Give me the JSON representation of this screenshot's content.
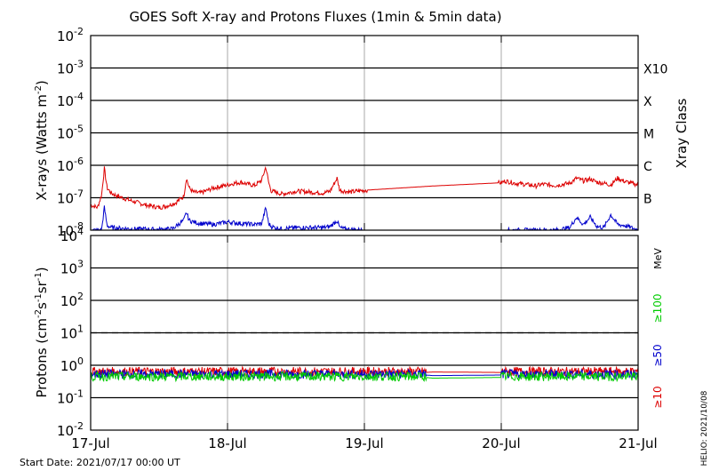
{
  "chart_data": [
    {
      "type": "line",
      "title": "GOES Soft X-ray and Protons Fluxes   (1min & 5min data)",
      "ylabel_base": "X-rays (Watts m",
      "ylabel_sup": "-2",
      "ylabel_close": ")",
      "y_scale": "log",
      "ylim": [
        1e-08,
        0.01
      ],
      "y_ticks": [
        {
          "base": "10",
          "exp": "-2",
          "value": 0.01
        },
        {
          "base": "10",
          "exp": "-3",
          "value": 0.001
        },
        {
          "base": "10",
          "exp": "-4",
          "value": 0.0001
        },
        {
          "base": "10",
          "exp": "-5",
          "value": 1e-05
        },
        {
          "base": "10",
          "exp": "-6",
          "value": 1e-06
        },
        {
          "base": "10",
          "exp": "-7",
          "value": 1e-07
        },
        {
          "base": "10",
          "exp": "-8",
          "value": 1e-08
        }
      ],
      "right_axis_label": "Xray Class",
      "right_ticks": [
        {
          "label": "X10",
          "value": 0.001
        },
        {
          "label": "X",
          "value": 0.0001
        },
        {
          "label": "M",
          "value": 1e-05
        },
        {
          "label": "C",
          "value": 1e-06
        },
        {
          "label": "B",
          "value": 1e-07
        }
      ],
      "series": [
        {
          "color": "#dd0000",
          "x": [
            0.0,
            0.05,
            0.08,
            0.1,
            0.12,
            0.15,
            0.2,
            0.3,
            0.4,
            0.5,
            0.55,
            0.62,
            0.68,
            0.7,
            0.72,
            0.75,
            0.8,
            0.9,
            1.0,
            1.05,
            1.1,
            1.15,
            1.2,
            1.25,
            1.28,
            1.3,
            1.32,
            1.35,
            1.4,
            1.5,
            1.6,
            1.7,
            1.75,
            1.8,
            1.82,
            1.85,
            1.9,
            1.95,
            2.0,
            2.5,
            3.0,
            3.03,
            3.1,
            3.2,
            3.25,
            3.3,
            3.4,
            3.5,
            3.55,
            3.6,
            3.65,
            3.7,
            3.75,
            3.8,
            3.85,
            3.9,
            3.95,
            4.0
          ],
          "y": [
            6e-08,
            5e-08,
            1.2e-07,
            8e-07,
            2e-07,
            1.4e-07,
            1.1e-07,
            8e-08,
            6e-08,
            5e-08,
            5.5e-08,
            7e-08,
            1.1e-07,
            4e-07,
            2e-07,
            1.5e-07,
            1.4e-07,
            2e-07,
            2.5e-07,
            2.8e-07,
            3e-07,
            2.6e-07,
            2.4e-07,
            3.5e-07,
            9e-07,
            3e-07,
            1.6e-07,
            1.5e-07,
            1.3e-07,
            1.6e-07,
            1.5e-07,
            1.4e-07,
            1.6e-07,
            4e-07,
            1.7e-07,
            1.6e-07,
            1.5e-07,
            1.6e-07,
            1.7e-07,
            2.3e-07,
            2.9e-07,
            3.3e-07,
            2.8e-07,
            2.5e-07,
            2.3e-07,
            2.6e-07,
            2.4e-07,
            2.8e-07,
            4e-07,
            3.3e-07,
            3.8e-07,
            3e-07,
            2.8e-07,
            2.5e-07,
            4e-07,
            3.2e-07,
            2.8e-07,
            2.5e-07
          ]
        },
        {
          "color": "#0000cc",
          "x": [
            0.0,
            0.05,
            0.08,
            0.1,
            0.12,
            0.15,
            0.3,
            0.5,
            0.6,
            0.62,
            0.68,
            0.7,
            0.72,
            0.75,
            0.8,
            0.9,
            1.0,
            1.1,
            1.2,
            1.25,
            1.28,
            1.3,
            1.32,
            1.35,
            1.4,
            1.5,
            1.6,
            1.7,
            1.75,
            1.8,
            1.82,
            1.85,
            1.9,
            1.95,
            2.0
          ],
          "y": [
            1e-08,
            1e-08,
            1e-08,
            5e-08,
            1.4e-08,
            1.2e-08,
            1.1e-08,
            1.05e-08,
            1.1e-08,
            1.3e-08,
            2e-08,
            3.5e-08,
            2e-08,
            1.8e-08,
            1.6e-08,
            1.5e-08,
            1.8e-08,
            1.6e-08,
            1.5e-08,
            1.6e-08,
            5e-08,
            1.6e-08,
            1.3e-08,
            1.2e-08,
            1.1e-08,
            1.2e-08,
            1.2e-08,
            1.2e-08,
            1.3e-08,
            2e-08,
            1.2e-08,
            1.1e-08,
            1.05e-08,
            1.02e-08,
            1e-08
          ]
        },
        {
          "color": "#0000cc",
          "x": [
            3.05,
            3.1,
            3.2,
            3.3,
            3.4,
            3.5,
            3.55,
            3.6,
            3.65,
            3.7,
            3.75,
            3.8,
            3.85,
            3.9,
            3.95,
            4.0
          ],
          "y": [
            1e-08,
            1e-08,
            1e-08,
            1e-08,
            1e-08,
            1.2e-08,
            2.5e-08,
            1.5e-08,
            2.5e-08,
            1.3e-08,
            1.2e-08,
            3e-08,
            1.5e-08,
            1.4e-08,
            1.2e-08,
            1e-08
          ]
        }
      ]
    },
    {
      "type": "line",
      "ylabel_base": "Protons (cm",
      "ylabel_sup1": "-2",
      "ylabel_mid1": "s",
      "ylabel_sup2": "-1",
      "ylabel_mid2": "sr",
      "ylabel_sup3": "-1",
      "ylabel_close": ")",
      "y_scale": "log",
      "ylim": [
        0.01,
        10000
      ],
      "y_ticks": [
        {
          "base": "10",
          "exp": "4",
          "value": 10000
        },
        {
          "base": "10",
          "exp": "3",
          "value": 1000
        },
        {
          "base": "10",
          "exp": "2",
          "value": 100
        },
        {
          "base": "10",
          "exp": "1",
          "value": 10
        },
        {
          "base": "10",
          "exp": "0",
          "value": 1
        },
        {
          "base": "10",
          "exp": "-1",
          "value": 0.1
        },
        {
          "base": "10",
          "exp": "-2",
          "value": 0.01
        }
      ],
      "threshold_line": 10,
      "right_unit": "MeV",
      "legend_position": "right",
      "legend": [
        {
          "label": "≥100",
          "color": "#00cc00"
        },
        {
          "label": "≥50",
          "color": "#0000cc"
        },
        {
          "label": "≥10",
          "color": "#dd0000"
        }
      ],
      "series": [
        {
          "label": "≥10",
          "color": "#dd0000",
          "x": [
            0,
            2,
            2.45,
            2.5,
            3.0,
            3.5,
            4.0
          ],
          "y": [
            0.6,
            0.6,
            0.6,
            0.62,
            0.6,
            0.6,
            0.6
          ]
        },
        {
          "label": "≥50",
          "color": "#0000cc",
          "x": [
            0,
            2,
            2.45,
            2.5,
            3.0,
            3.5,
            4.0
          ],
          "y": [
            0.5,
            0.5,
            0.5,
            0.48,
            0.5,
            0.5,
            0.5
          ]
        },
        {
          "label": "≥100",
          "color": "#00cc00",
          "x": [
            0,
            2,
            2.45,
            2.5,
            3.0,
            3.5,
            4.0
          ],
          "y": [
            0.42,
            0.42,
            0.42,
            0.4,
            0.42,
            0.42,
            0.42
          ]
        }
      ]
    }
  ],
  "x_axis": {
    "xlim": [
      0,
      4
    ],
    "ticks": [
      {
        "label": "17-Jul",
        "value": 0
      },
      {
        "label": "18-Jul",
        "value": 1
      },
      {
        "label": "19-Jul",
        "value": 2
      },
      {
        "label": "20-Jul",
        "value": 3
      },
      {
        "label": "21-Jul",
        "value": 4
      }
    ]
  },
  "footer": {
    "start_date": "Start Date: 2021/07/17 00:00 UT",
    "stamp": "HELIO: 2021/10/08"
  }
}
